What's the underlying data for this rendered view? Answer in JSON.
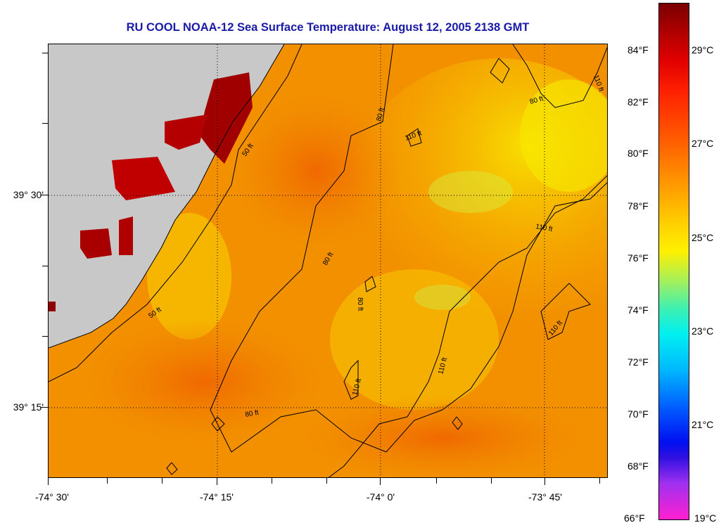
{
  "title": "RU COOL  NOAA-12  Sea Surface Temperature:  August 12, 2005 2138 GMT",
  "longitude_labels": [
    "-74° 30'",
    "-74° 15'",
    "-74° 0'",
    "-73° 45'"
  ],
  "latitude_labels": [
    "39° 30'",
    "39° 15'"
  ],
  "colorbar": {
    "fahrenheit_labels": [
      "84°F",
      "82°F",
      "80°F",
      "78°F",
      "76°F",
      "74°F",
      "72°F",
      "70°F",
      "68°F",
      "66°F"
    ],
    "celsius_labels": [
      "29°C",
      "27°C",
      "25°C",
      "23°C",
      "21°C",
      "19°C"
    ],
    "range_f": [
      66,
      86
    ]
  },
  "isobaths": [
    "50 ft",
    "80 ft",
    "110 ft"
  ],
  "colors": {
    "title": "#1a1aa8",
    "land": "#c8c8c8",
    "sst_warm": "#f08800",
    "sst_cool": "#f8e000"
  }
}
